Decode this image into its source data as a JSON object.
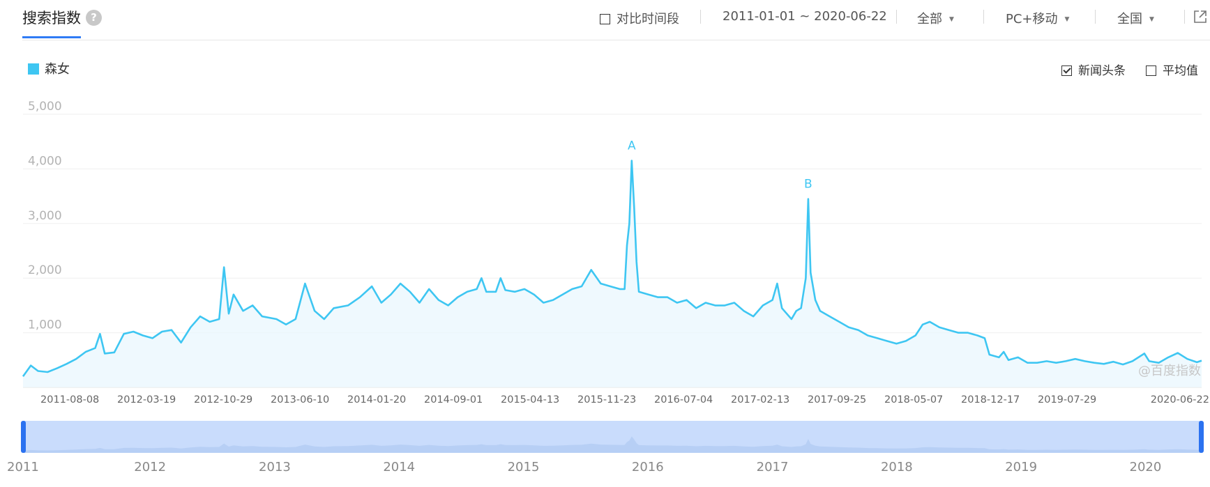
{
  "header": {
    "title": "搜索指数",
    "help_symbol": "?",
    "compare_label": "对比时间段",
    "date_range": "2011-01-01 ~ 2020-06-22",
    "scope_select": "全部",
    "device_select": "PC+移动",
    "region_select": "全国"
  },
  "legend": {
    "series_name": "森女",
    "color": "#3ec6f2"
  },
  "options": {
    "news_label": "新闻头条",
    "news_checked": true,
    "avg_label": "平均值",
    "avg_checked": false
  },
  "watermark": "@百度指数",
  "chart_data": {
    "type": "area",
    "y_ticks": [
      "5,000",
      "4,000",
      "3,000",
      "2,000",
      "1,000"
    ],
    "ylim": [
      0,
      5000
    ],
    "x_tick_labels": [
      "2011-08-08",
      "2012-03-19",
      "2012-10-29",
      "2013-06-10",
      "2014-01-20",
      "2014-09-01",
      "2015-04-13",
      "2015-11-23",
      "2016-07-04",
      "2017-02-13",
      "2017-09-25",
      "2018-05-07",
      "2018-12-17",
      "2019-07-29",
      "2020-06-22"
    ],
    "annotations": [
      {
        "label": "A",
        "x": "2015-11-23",
        "y": 4150
      },
      {
        "label": "B",
        "x": "2017-04-24",
        "y": 3450
      }
    ],
    "series": [
      {
        "name": "森女",
        "points": [
          [
            "2011-01-01",
            200
          ],
          [
            "2011-01-24",
            400
          ],
          [
            "2011-02-14",
            300
          ],
          [
            "2011-03-14",
            280
          ],
          [
            "2011-04-11",
            350
          ],
          [
            "2011-05-09",
            430
          ],
          [
            "2011-06-06",
            520
          ],
          [
            "2011-07-04",
            650
          ],
          [
            "2011-08-01",
            720
          ],
          [
            "2011-08-15",
            980
          ],
          [
            "2011-08-29",
            620
          ],
          [
            "2011-09-26",
            640
          ],
          [
            "2011-10-24",
            980
          ],
          [
            "2011-11-21",
            1020
          ],
          [
            "2011-12-19",
            950
          ],
          [
            "2012-01-16",
            900
          ],
          [
            "2012-02-13",
            1020
          ],
          [
            "2012-03-12",
            1050
          ],
          [
            "2012-04-09",
            820
          ],
          [
            "2012-05-07",
            1100
          ],
          [
            "2012-06-04",
            1300
          ],
          [
            "2012-07-02",
            1200
          ],
          [
            "2012-07-30",
            1250
          ],
          [
            "2012-08-13",
            2200
          ],
          [
            "2012-08-27",
            1350
          ],
          [
            "2012-09-10",
            1700
          ],
          [
            "2012-10-08",
            1400
          ],
          [
            "2012-11-05",
            1500
          ],
          [
            "2012-12-03",
            1300
          ],
          [
            "2013-01-14",
            1250
          ],
          [
            "2013-02-11",
            1150
          ],
          [
            "2013-03-11",
            1250
          ],
          [
            "2013-04-08",
            1900
          ],
          [
            "2013-05-06",
            1400
          ],
          [
            "2013-06-03",
            1250
          ],
          [
            "2013-07-01",
            1450
          ],
          [
            "2013-08-12",
            1500
          ],
          [
            "2013-09-16",
            1650
          ],
          [
            "2013-10-21",
            1850
          ],
          [
            "2013-11-18",
            1550
          ],
          [
            "2013-12-16",
            1700
          ],
          [
            "2014-01-13",
            1900
          ],
          [
            "2014-02-10",
            1750
          ],
          [
            "2014-03-10",
            1550
          ],
          [
            "2014-04-07",
            1800
          ],
          [
            "2014-05-05",
            1600
          ],
          [
            "2014-06-02",
            1500
          ],
          [
            "2014-06-30",
            1650
          ],
          [
            "2014-07-28",
            1750
          ],
          [
            "2014-08-25",
            1800
          ],
          [
            "2014-09-08",
            2000
          ],
          [
            "2014-09-22",
            1750
          ],
          [
            "2014-10-20",
            1750
          ],
          [
            "2014-11-03",
            2000
          ],
          [
            "2014-11-17",
            1780
          ],
          [
            "2014-12-15",
            1750
          ],
          [
            "2015-01-12",
            1800
          ],
          [
            "2015-02-09",
            1700
          ],
          [
            "2015-03-09",
            1550
          ],
          [
            "2015-04-06",
            1600
          ],
          [
            "2015-05-04",
            1700
          ],
          [
            "2015-06-01",
            1800
          ],
          [
            "2015-06-29",
            1850
          ],
          [
            "2015-07-27",
            2150
          ],
          [
            "2015-08-24",
            1900
          ],
          [
            "2015-09-21",
            1850
          ],
          [
            "2015-10-19",
            1800
          ],
          [
            "2015-11-02",
            1800
          ],
          [
            "2015-11-09",
            2600
          ],
          [
            "2015-11-16",
            3000
          ],
          [
            "2015-11-23",
            4150
          ],
          [
            "2015-11-30",
            3300
          ],
          [
            "2015-12-07",
            2300
          ],
          [
            "2015-12-14",
            1750
          ],
          [
            "2016-01-11",
            1700
          ],
          [
            "2016-02-08",
            1650
          ],
          [
            "2016-03-07",
            1650
          ],
          [
            "2016-04-04",
            1550
          ],
          [
            "2016-05-02",
            1600
          ],
          [
            "2016-05-30",
            1450
          ],
          [
            "2016-06-27",
            1550
          ],
          [
            "2016-07-25",
            1500
          ],
          [
            "2016-08-22",
            1500
          ],
          [
            "2016-09-19",
            1550
          ],
          [
            "2016-10-17",
            1400
          ],
          [
            "2016-11-14",
            1300
          ],
          [
            "2016-12-12",
            1500
          ],
          [
            "2017-01-09",
            1600
          ],
          [
            "2017-01-23",
            1900
          ],
          [
            "2017-02-06",
            1450
          ],
          [
            "2017-03-06",
            1250
          ],
          [
            "2017-03-20",
            1400
          ],
          [
            "2017-04-03",
            1450
          ],
          [
            "2017-04-17",
            2000
          ],
          [
            "2017-04-24",
            3450
          ],
          [
            "2017-05-01",
            2100
          ],
          [
            "2017-05-15",
            1600
          ],
          [
            "2017-05-29",
            1400
          ],
          [
            "2017-06-26",
            1300
          ],
          [
            "2017-07-24",
            1200
          ],
          [
            "2017-08-21",
            1100
          ],
          [
            "2017-09-18",
            1050
          ],
          [
            "2017-10-16",
            950
          ],
          [
            "2017-11-13",
            900
          ],
          [
            "2017-12-11",
            850
          ],
          [
            "2018-01-08",
            800
          ],
          [
            "2018-02-05",
            850
          ],
          [
            "2018-03-05",
            950
          ],
          [
            "2018-03-26",
            1150
          ],
          [
            "2018-04-16",
            1200
          ],
          [
            "2018-05-14",
            1100
          ],
          [
            "2018-06-11",
            1050
          ],
          [
            "2018-07-09",
            1000
          ],
          [
            "2018-08-06",
            1000
          ],
          [
            "2018-09-03",
            950
          ],
          [
            "2018-09-24",
            900
          ],
          [
            "2018-10-08",
            600
          ],
          [
            "2018-11-05",
            550
          ],
          [
            "2018-11-19",
            650
          ],
          [
            "2018-12-03",
            500
          ],
          [
            "2018-12-31",
            550
          ],
          [
            "2019-01-28",
            450
          ],
          [
            "2019-02-25",
            450
          ],
          [
            "2019-03-25",
            480
          ],
          [
            "2019-04-22",
            450
          ],
          [
            "2019-05-20",
            480
          ],
          [
            "2019-06-17",
            520
          ],
          [
            "2019-07-15",
            480
          ],
          [
            "2019-08-12",
            450
          ],
          [
            "2019-09-09",
            430
          ],
          [
            "2019-10-07",
            470
          ],
          [
            "2019-11-04",
            420
          ],
          [
            "2019-12-02",
            480
          ],
          [
            "2020-01-06",
            620
          ],
          [
            "2020-01-20",
            480
          ],
          [
            "2020-02-17",
            450
          ],
          [
            "2020-03-16",
            550
          ],
          [
            "2020-04-13",
            630
          ],
          [
            "2020-05-11",
            520
          ],
          [
            "2020-06-08",
            460
          ],
          [
            "2020-06-22",
            490
          ]
        ]
      }
    ]
  },
  "navigator": {
    "years": [
      "2011",
      "2012",
      "2013",
      "2014",
      "2015",
      "2016",
      "2017",
      "2018",
      "2019",
      "2020"
    ],
    "selection": [
      "2011-01-01",
      "2020-06-22"
    ]
  }
}
